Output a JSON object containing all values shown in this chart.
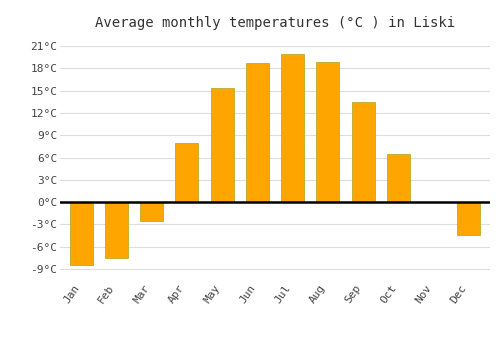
{
  "months": [
    "Jan",
    "Feb",
    "Mar",
    "Apr",
    "May",
    "Jun",
    "Jul",
    "Aug",
    "Sep",
    "Oct",
    "Nov",
    "Dec"
  ],
  "temperatures": [
    -8.5,
    -7.5,
    -2.5,
    8.0,
    15.3,
    18.7,
    20.0,
    18.8,
    13.5,
    6.5,
    0.0,
    -4.5
  ],
  "bar_color_top": "#FFC200",
  "bar_color_bottom": "#FFA500",
  "bar_edge_color": "#999900",
  "title": "Average monthly temperatures (°C ) in Liski",
  "title_fontsize": 10,
  "yticks": [
    -9,
    -6,
    -3,
    0,
    3,
    6,
    9,
    12,
    15,
    18,
    21
  ],
  "ylim": [
    -10.5,
    22.5
  ],
  "plot_bg_color": "#ffffff",
  "fig_bg_color": "#ffffff",
  "grid_color": "#dddddd",
  "zero_line_color": "#000000",
  "tick_label_fontsize": 8,
  "xlabel_fontsize": 8,
  "bar_width": 0.65
}
